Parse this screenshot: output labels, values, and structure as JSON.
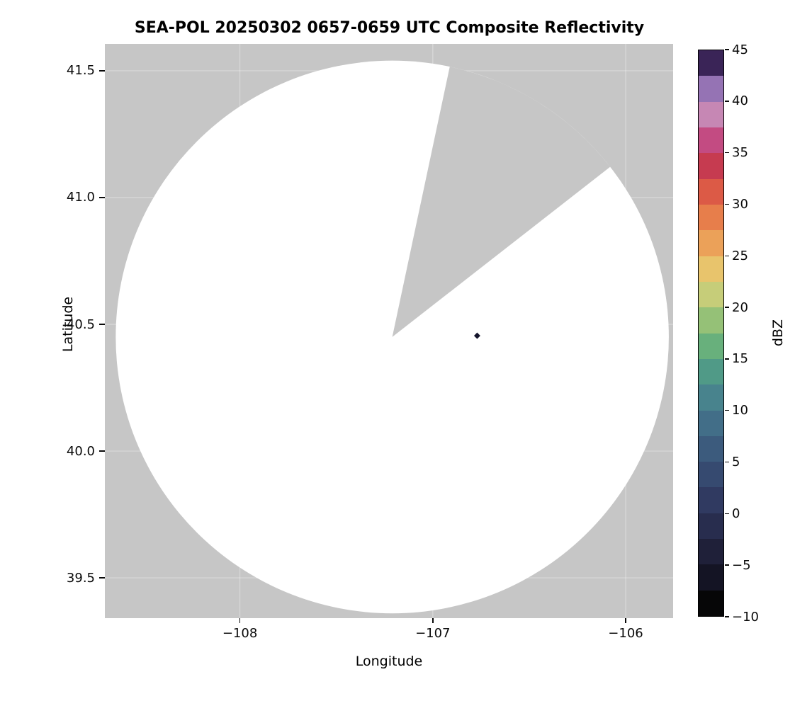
{
  "chart_data": {
    "type": "heatmap",
    "title": "SEA-POL 20250302 0657-0659 UTC Composite Reflectivity",
    "xlabel": "Longitude",
    "ylabel": "Latitude",
    "xlim": [
      -108.7,
      -105.754
    ],
    "ylim": [
      39.341,
      41.606
    ],
    "xticks": [
      {
        "value": -108,
        "label": "−108"
      },
      {
        "value": -107,
        "label": "−107"
      },
      {
        "value": -106,
        "label": "−106"
      }
    ],
    "yticks": [
      {
        "value": 39.5,
        "label": "39.5"
      },
      {
        "value": 40.0,
        "label": "40.0"
      },
      {
        "value": 40.5,
        "label": "40.5"
      },
      {
        "value": 41.0,
        "label": "41.0"
      },
      {
        "value": 41.5,
        "label": "41.5"
      }
    ],
    "grid": false,
    "radar_coverage": {
      "center": {
        "lon": -107.21,
        "lat": 40.45
      },
      "radius_deg": 1.09,
      "coverage_color": "#ffffff",
      "no_data_color": "#c6c6c6",
      "blocked_sector_azimuth_deg": [
        12,
        52
      ]
    },
    "echoes": [
      {
        "lon": -106.77,
        "lat": 40.455,
        "color": "#14142b",
        "marker": "diamond"
      }
    ],
    "colorbar": {
      "label": "dBZ",
      "min": -10,
      "max": 45,
      "ticks": [
        {
          "value": -10,
          "label": "−10"
        },
        {
          "value": -5,
          "label": "−5"
        },
        {
          "value": 0,
          "label": "0"
        },
        {
          "value": 5,
          "label": "5"
        },
        {
          "value": 10,
          "label": "10"
        },
        {
          "value": 15,
          "label": "15"
        },
        {
          "value": 20,
          "label": "20"
        },
        {
          "value": 25,
          "label": "25"
        },
        {
          "value": 30,
          "label": "30"
        },
        {
          "value": 35,
          "label": "35"
        },
        {
          "value": 40,
          "label": "40"
        },
        {
          "value": 45,
          "label": "45"
        }
      ],
      "segments": [
        {
          "range": [
            -10,
            -7.5
          ],
          "color": "#060607"
        },
        {
          "range": [
            -7.5,
            -5
          ],
          "color": "#141424"
        },
        {
          "range": [
            -5,
            -2.5
          ],
          "color": "#1f2039"
        },
        {
          "range": [
            -2.5,
            0
          ],
          "color": "#282d4e"
        },
        {
          "range": [
            0,
            2.5
          ],
          "color": "#303a61"
        },
        {
          "range": [
            2.5,
            5
          ],
          "color": "#364a70"
        },
        {
          "range": [
            5,
            7.5
          ],
          "color": "#3c5b7d"
        },
        {
          "range": [
            7.5,
            10
          ],
          "color": "#426e88"
        },
        {
          "range": [
            10,
            12.5
          ],
          "color": "#48838d"
        },
        {
          "range": [
            12.5,
            15
          ],
          "color": "#509a87"
        },
        {
          "range": [
            15,
            17.5
          ],
          "color": "#68b07c"
        },
        {
          "range": [
            17.5,
            20
          ],
          "color": "#95c177"
        },
        {
          "range": [
            20,
            22.5
          ],
          "color": "#c6cd79"
        },
        {
          "range": [
            22.5,
            25
          ],
          "color": "#e8c46c"
        },
        {
          "range": [
            25,
            27.5
          ],
          "color": "#eba159"
        },
        {
          "range": [
            27.5,
            30
          ],
          "color": "#e77e4b"
        },
        {
          "range": [
            30,
            32.5
          ],
          "color": "#dc5a46"
        },
        {
          "range": [
            32.5,
            35
          ],
          "color": "#c63b50"
        },
        {
          "range": [
            35,
            37.5
          ],
          "color": "#c34b82"
        },
        {
          "range": [
            37.5,
            40
          ],
          "color": "#c687b4"
        },
        {
          "range": [
            40,
            42.5
          ],
          "color": "#9573b4"
        },
        {
          "range": [
            42.5,
            45
          ],
          "color": "#3a2457"
        }
      ]
    }
  }
}
